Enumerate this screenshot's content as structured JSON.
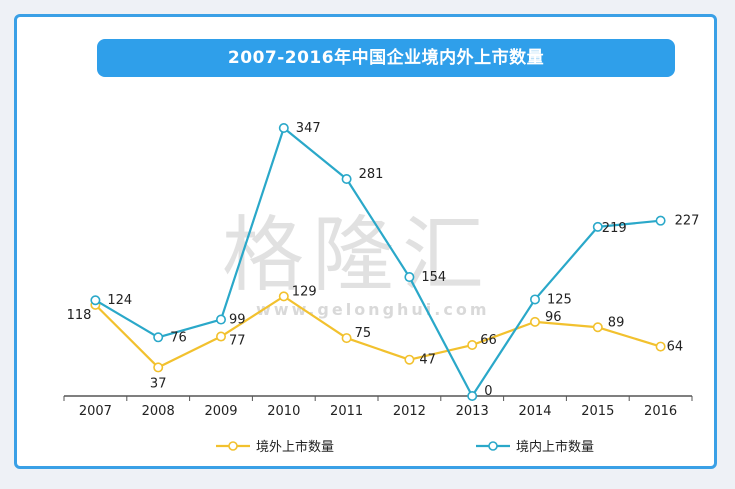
{
  "chart_data": {
    "type": "line",
    "title": "2007-2016年中国企业境内外上市数量",
    "categories": [
      "2007",
      "2008",
      "2009",
      "2010",
      "2011",
      "2012",
      "2013",
      "2014",
      "2015",
      "2016"
    ],
    "series": [
      {
        "name": "境外上市数量",
        "color": "#f2c12e",
        "values": [
          118,
          37,
          77,
          129,
          75,
          47,
          66,
          96,
          89,
          64
        ]
      },
      {
        "name": "境内上市数量",
        "color": "#2aa8c9",
        "values": [
          124,
          76,
          99,
          347,
          281,
          154,
          0,
          125,
          219,
          227
        ]
      }
    ],
    "ylim": [
      0,
      360
    ],
    "grid": false,
    "legend": "bottom"
  },
  "watermark": {
    "main": "格隆汇",
    "url": "www.gelonghui.com"
  }
}
